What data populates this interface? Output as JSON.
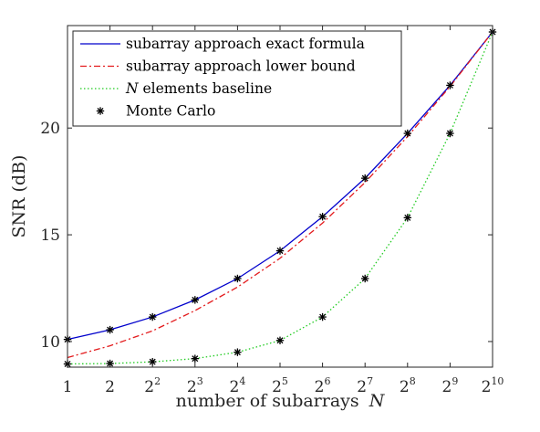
{
  "chart_data": {
    "type": "line",
    "xlabel": "number of subarrays",
    "xlabel_var": "N",
    "ylabel": "SNR (dB)",
    "x_scale": "log2",
    "x": [
      1,
      2,
      4,
      8,
      16,
      32,
      64,
      128,
      256,
      512,
      1024
    ],
    "x_ticks": [
      {
        "base": "1",
        "exp": ""
      },
      {
        "base": "2",
        "exp": ""
      },
      {
        "base": "2",
        "exp": "2"
      },
      {
        "base": "2",
        "exp": "3"
      },
      {
        "base": "2",
        "exp": "4"
      },
      {
        "base": "2",
        "exp": "5"
      },
      {
        "base": "2",
        "exp": "6"
      },
      {
        "base": "2",
        "exp": "7"
      },
      {
        "base": "2",
        "exp": "8"
      },
      {
        "base": "2",
        "exp": "9"
      },
      {
        "base": "2",
        "exp": "10"
      }
    ],
    "ylim": [
      8.8,
      24.8
    ],
    "y_ticks": [
      10,
      15,
      20
    ],
    "grid": false,
    "legend_position": "top-left",
    "series": [
      {
        "name": "subarray approach exact formula",
        "style": "solid",
        "color": "#0000cc",
        "values": [
          10.1,
          10.55,
          11.15,
          11.95,
          12.95,
          14.25,
          15.85,
          17.65,
          19.75,
          22.0,
          24.5
        ]
      },
      {
        "name": "subarray approach lower bound",
        "style": "dashdot",
        "color": "#e31a1c",
        "values": [
          9.25,
          9.8,
          10.5,
          11.45,
          12.55,
          13.9,
          15.55,
          17.45,
          19.6,
          21.95,
          24.5
        ]
      },
      {
        "name_var": "N",
        "name": "elements baseline",
        "style": "dotted",
        "color": "#22cc22",
        "values": [
          8.95,
          8.97,
          9.05,
          9.2,
          9.5,
          10.05,
          11.15,
          12.95,
          15.8,
          19.75,
          24.5
        ]
      },
      {
        "name": "Monte Carlo",
        "style": "marker",
        "color": "#000000",
        "marker": "asterisk",
        "points": [
          {
            "x": 1,
            "y": 10.1
          },
          {
            "x": 2,
            "y": 10.55
          },
          {
            "x": 4,
            "y": 11.15
          },
          {
            "x": 8,
            "y": 11.95
          },
          {
            "x": 16,
            "y": 12.95
          },
          {
            "x": 32,
            "y": 14.25
          },
          {
            "x": 64,
            "y": 15.85
          },
          {
            "x": 128,
            "y": 17.65
          },
          {
            "x": 256,
            "y": 19.75
          },
          {
            "x": 512,
            "y": 22.0
          },
          {
            "x": 1024,
            "y": 24.5
          },
          {
            "x": 1,
            "y": 8.95
          },
          {
            "x": 2,
            "y": 8.97
          },
          {
            "x": 4,
            "y": 9.05
          },
          {
            "x": 8,
            "y": 9.2
          },
          {
            "x": 16,
            "y": 9.5
          },
          {
            "x": 32,
            "y": 10.05
          },
          {
            "x": 64,
            "y": 11.15
          },
          {
            "x": 128,
            "y": 12.95
          },
          {
            "x": 256,
            "y": 15.8
          },
          {
            "x": 512,
            "y": 19.75
          }
        ]
      }
    ]
  }
}
